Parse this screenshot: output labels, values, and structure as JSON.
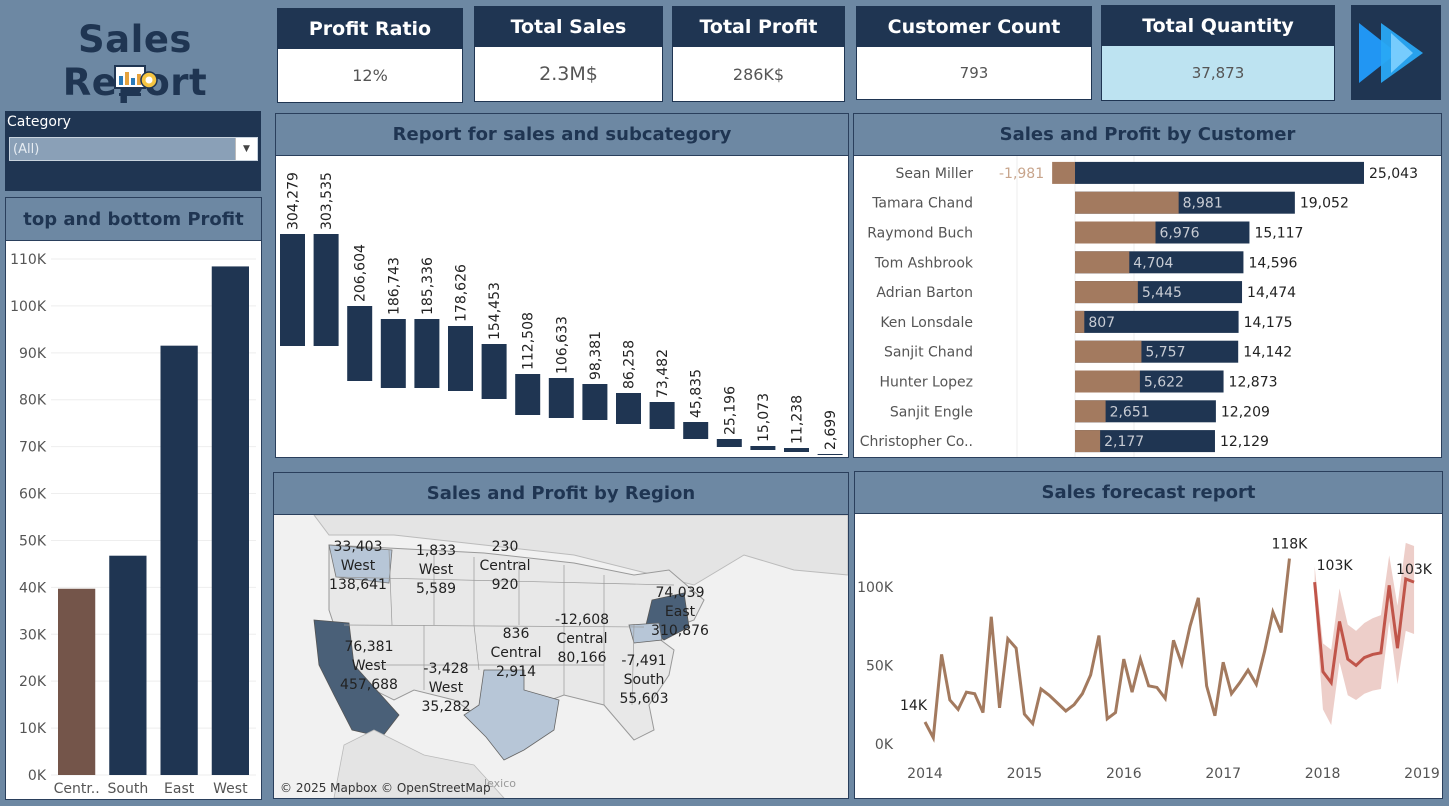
{
  "header": {
    "title": "Sales Report"
  },
  "kpis": [
    {
      "label": "Profit Ratio",
      "value": "12%"
    },
    {
      "label": "Total Sales",
      "value": "2.3M$"
    },
    {
      "label": "Total Profit",
      "value": "286K$"
    },
    {
      "label": "Customer Count",
      "value": "793"
    },
    {
      "label": "Total Quantity",
      "value": "37,873"
    }
  ],
  "filter": {
    "label": "Category",
    "value": "(All)"
  },
  "colors": {
    "navy": "#1f3552",
    "brown": "#a37a5f",
    "slate": "#6d88a3",
    "kpi_highlight": "#bde3f1",
    "central_bar": "#74554a",
    "forecast": "#c0554a"
  },
  "panels": {
    "top_bottom": {
      "title": "top and bottom Profit"
    },
    "subcategory": {
      "title": "Report for sales and subcategory"
    },
    "customer": {
      "title": "Sales and Profit by Customer"
    },
    "region": {
      "title": "Sales and Profit by Region",
      "attribution": "© 2025 Mapbox © OpenStreetMap",
      "map_fragment": "lexico"
    },
    "forecast": {
      "title": "Sales forecast report"
    }
  },
  "chart_data": [
    {
      "type": "bar",
      "title": "top and bottom Profit",
      "categories": [
        "Centr..",
        "South",
        "East",
        "West"
      ],
      "values": [
        39706,
        46749,
        91523,
        108418
      ],
      "ylim": [
        0,
        110000
      ],
      "yticks": [
        "0K",
        "10K",
        "20K",
        "30K",
        "40K",
        "50K",
        "60K",
        "70K",
        "80K",
        "90K",
        "100K",
        "110K"
      ],
      "grid": true
    },
    {
      "type": "bar",
      "title": "Report for sales and subcategory",
      "subtype": "waterfall",
      "values": [
        304279,
        303535,
        206604,
        186743,
        185336,
        178626,
        154453,
        112508,
        106633,
        98381,
        86258,
        73482,
        45835,
        25196,
        15073,
        11238,
        2699
      ],
      "labels": [
        "304,279",
        "303,535",
        "206,604",
        "186,743",
        "185,336",
        "178,626",
        "154,453",
        "112,508",
        "106,633",
        "98,381",
        "86,258",
        "73,482",
        "45,835",
        "25,196",
        "15,073",
        "11,238",
        "2,699"
      ]
    },
    {
      "type": "bar",
      "title": "Sales and Profit by Customer",
      "orientation": "horizontal",
      "categories": [
        "Sean Miller",
        "Tamara Chand",
        "Raymond Buch",
        "Tom Ashbrook",
        "Adrian Barton",
        "Ken Lonsdale",
        "Sanjit Chand",
        "Hunter Lopez",
        "Sanjit Engle",
        "Christopher Co.."
      ],
      "series": [
        {
          "name": "Sales",
          "values": [
            25043,
            19052,
            15117,
            14596,
            14474,
            14175,
            14142,
            12873,
            12209,
            12129
          ],
          "labels": [
            "25,043",
            "19,052",
            "15,117",
            "14,596",
            "14,474",
            "14,175",
            "14,142",
            "12,873",
            "12,209",
            "12,129"
          ]
        },
        {
          "name": "Profit",
          "values": [
            -1981,
            8981,
            6976,
            4704,
            5445,
            807,
            5757,
            5622,
            2651,
            2177
          ],
          "labels": [
            "-1,981",
            "8,981",
            "6,976",
            "4,704",
            "5,445",
            "807",
            "5,757",
            "5,622",
            "2,651",
            "2,177"
          ]
        }
      ]
    },
    {
      "type": "map",
      "title": "Sales and Profit by Region",
      "labels": [
        {
          "profit": "33,403",
          "region": "West",
          "sales": "138,641"
        },
        {
          "profit": "1,833",
          "region": "West",
          "sales": "5,589"
        },
        {
          "profit": "230",
          "region": "Central",
          "sales": "920"
        },
        {
          "profit": "74,039",
          "region": "East",
          "sales": "310,876"
        },
        {
          "profit": "836",
          "region": "Central",
          "sales": "2,914"
        },
        {
          "profit": "-12,608",
          "region": "Central",
          "sales": "80,166"
        },
        {
          "profit": "76,381",
          "region": "West",
          "sales": "457,688"
        },
        {
          "profit": "-3,428",
          "region": "West",
          "sales": "35,282"
        },
        {
          "profit": "-7,491",
          "region": "South",
          "sales": "55,603"
        }
      ]
    },
    {
      "type": "line",
      "title": "Sales forecast report",
      "xticks": [
        "2014",
        "2015",
        "2016",
        "2017",
        "2018",
        "2019"
      ],
      "yticks": [
        "0K",
        "50K",
        "100K"
      ],
      "ylim": [
        0,
        140000
      ],
      "series": [
        {
          "name": "Actual",
          "start": 2014.0,
          "step": 0.08333,
          "values": [
            14000,
            4000,
            57000,
            28000,
            22000,
            33000,
            32000,
            20000,
            81000,
            23000,
            67000,
            61000,
            19000,
            13000,
            35000,
            31000,
            26000,
            21000,
            25000,
            32000,
            44000,
            69000,
            16000,
            20000,
            54000,
            33000,
            54000,
            37000,
            36000,
            29000,
            66000,
            51000,
            75000,
            93000,
            37000,
            18000,
            52000,
            32000,
            39000,
            47000,
            38000,
            59000,
            84000,
            71000,
            118000
          ]
        },
        {
          "name": "Forecast",
          "start": 2017.92,
          "step": 0.08333,
          "values": [
            103000,
            46000,
            39000,
            78000,
            54000,
            50000,
            55000,
            57000,
            58000,
            101000,
            61000,
            105000,
            103000
          ],
          "upper": [
            113000,
            64000,
            60000,
            99000,
            76000,
            72000,
            77000,
            80000,
            82000,
            120000,
            88000,
            128000,
            126000
          ],
          "lower": [
            93000,
            22000,
            12000,
            52000,
            31000,
            28000,
            32000,
            34000,
            35000,
            78000,
            38000,
            72000,
            70000
          ]
        }
      ],
      "labels": {
        "start": "14K",
        "peak": "118K",
        "forecast_start": "103K",
        "forecast_end": "103K"
      }
    }
  ]
}
